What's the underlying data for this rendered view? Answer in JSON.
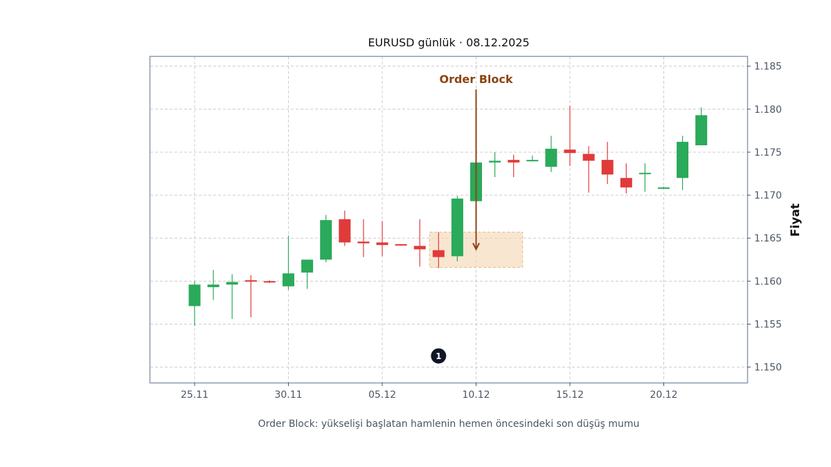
{
  "chart_data": {
    "type": "candlestick",
    "title": "EURUSD günlük · 08.12.2025",
    "ylabel": "Fiyat",
    "xlabel": "",
    "caption": "Order Block: yükselişi başlatan hamlenin hemen öncesindeki son düşüş mumu",
    "ylim": [
      1.1482,
      1.1861
    ],
    "yticks": [
      "1.150",
      "1.155",
      "1.160",
      "1.165",
      "1.170",
      "1.175",
      "1.180",
      "1.185"
    ],
    "xticks": [
      "25.11",
      "30.11",
      "05.12",
      "10.12",
      "15.12",
      "20.12"
    ],
    "grid": true,
    "colors": {
      "up": "#2aaa5a",
      "down": "#e03a3a",
      "annotation": "#8b4513",
      "zone": "#f5d9b8",
      "frame": "#8a9ab0",
      "badge": "#0f1626"
    },
    "candles": [
      {
        "date": "25.11.2025",
        "open": 1.1571,
        "high": 1.16,
        "low": 1.1548,
        "close": 1.1596
      },
      {
        "date": "26.11.2025",
        "open": 1.1593,
        "high": 1.1613,
        "low": 1.1578,
        "close": 1.1596
      },
      {
        "date": "27.11.2025",
        "open": 1.1596,
        "high": 1.1608,
        "low": 1.1556,
        "close": 1.1599
      },
      {
        "date": "28.11.2025",
        "open": 1.1601,
        "high": 1.1607,
        "low": 1.1558,
        "close": 1.16
      },
      {
        "date": "29.11.2025",
        "open": 1.16,
        "high": 1.1601,
        "low": 1.1598,
        "close": 1.1599
      },
      {
        "date": "30.11.2025",
        "open": 1.1594,
        "high": 1.1653,
        "low": 1.159,
        "close": 1.1609
      },
      {
        "date": "01.12.2025",
        "open": 1.161,
        "high": 1.1625,
        "low": 1.1591,
        "close": 1.1625
      },
      {
        "date": "02.12.2025",
        "open": 1.1625,
        "high": 1.1677,
        "low": 1.1622,
        "close": 1.1671
      },
      {
        "date": "03.12.2025",
        "open": 1.1672,
        "high": 1.1682,
        "low": 1.1641,
        "close": 1.1645
      },
      {
        "date": "04.12.2025",
        "open": 1.1646,
        "high": 1.1672,
        "low": 1.1628,
        "close": 1.1644
      },
      {
        "date": "05.12.2025",
        "open": 1.1645,
        "high": 1.167,
        "low": 1.1629,
        "close": 1.1642
      },
      {
        "date": "06.12.2025",
        "open": 1.1643,
        "high": 1.1643,
        "low": 1.1641,
        "close": 1.1642
      },
      {
        "date": "07.12.2025",
        "open": 1.1641,
        "high": 1.1672,
        "low": 1.1617,
        "close": 1.1637
      },
      {
        "date": "08.12.2025",
        "open": 1.1636,
        "high": 1.1657,
        "low": 1.1615,
        "close": 1.1628
      },
      {
        "date": "09.12.2025",
        "open": 1.1629,
        "high": 1.1699,
        "low": 1.1623,
        "close": 1.1696
      },
      {
        "date": "10.12.2025",
        "open": 1.1693,
        "high": 1.1763,
        "low": 1.169,
        "close": 1.1738
      },
      {
        "date": "11.12.2025",
        "open": 1.1738,
        "high": 1.175,
        "low": 1.1721,
        "close": 1.174
      },
      {
        "date": "12.12.2025",
        "open": 1.1741,
        "high": 1.1747,
        "low": 1.1721,
        "close": 1.1738
      },
      {
        "date": "13.12.2025",
        "open": 1.174,
        "high": 1.1746,
        "low": 1.1739,
        "close": 1.1741
      },
      {
        "date": "14.12.2025",
        "open": 1.1733,
        "high": 1.1769,
        "low": 1.1727,
        "close": 1.1754
      },
      {
        "date": "15.12.2025",
        "open": 1.1753,
        "high": 1.1804,
        "low": 1.1734,
        "close": 1.1749
      },
      {
        "date": "16.12.2025",
        "open": 1.1748,
        "high": 1.1757,
        "low": 1.1703,
        "close": 1.174
      },
      {
        "date": "17.12.2025",
        "open": 1.1741,
        "high": 1.1762,
        "low": 1.1713,
        "close": 1.1724
      },
      {
        "date": "18.12.2025",
        "open": 1.172,
        "high": 1.1737,
        "low": 1.1702,
        "close": 1.1709
      },
      {
        "date": "19.12.2025",
        "open": 1.1725,
        "high": 1.1737,
        "low": 1.1704,
        "close": 1.1726
      },
      {
        "date": "20.12.2025",
        "open": 1.1709,
        "high": 1.171,
        "low": 1.1708,
        "close": 1.1709
      },
      {
        "date": "21.12.2025",
        "open": 1.172,
        "high": 1.1769,
        "low": 1.1706,
        "close": 1.1762
      },
      {
        "date": "22.12.2025",
        "open": 1.1758,
        "high": 1.1802,
        "low": 1.1758,
        "close": 1.1793
      }
    ],
    "order_block_zone": {
      "from": "07.12.2025",
      "to": "12.12.2025",
      "low": 1.1616,
      "high": 1.1657
    },
    "annotation": {
      "label": "Order Block",
      "date": "10.12.2025",
      "arrow_from": 1.1823,
      "arrow_to": 1.1637
    },
    "badge": {
      "label": "1",
      "date": "08.12.2025",
      "value": 1.1513
    }
  }
}
